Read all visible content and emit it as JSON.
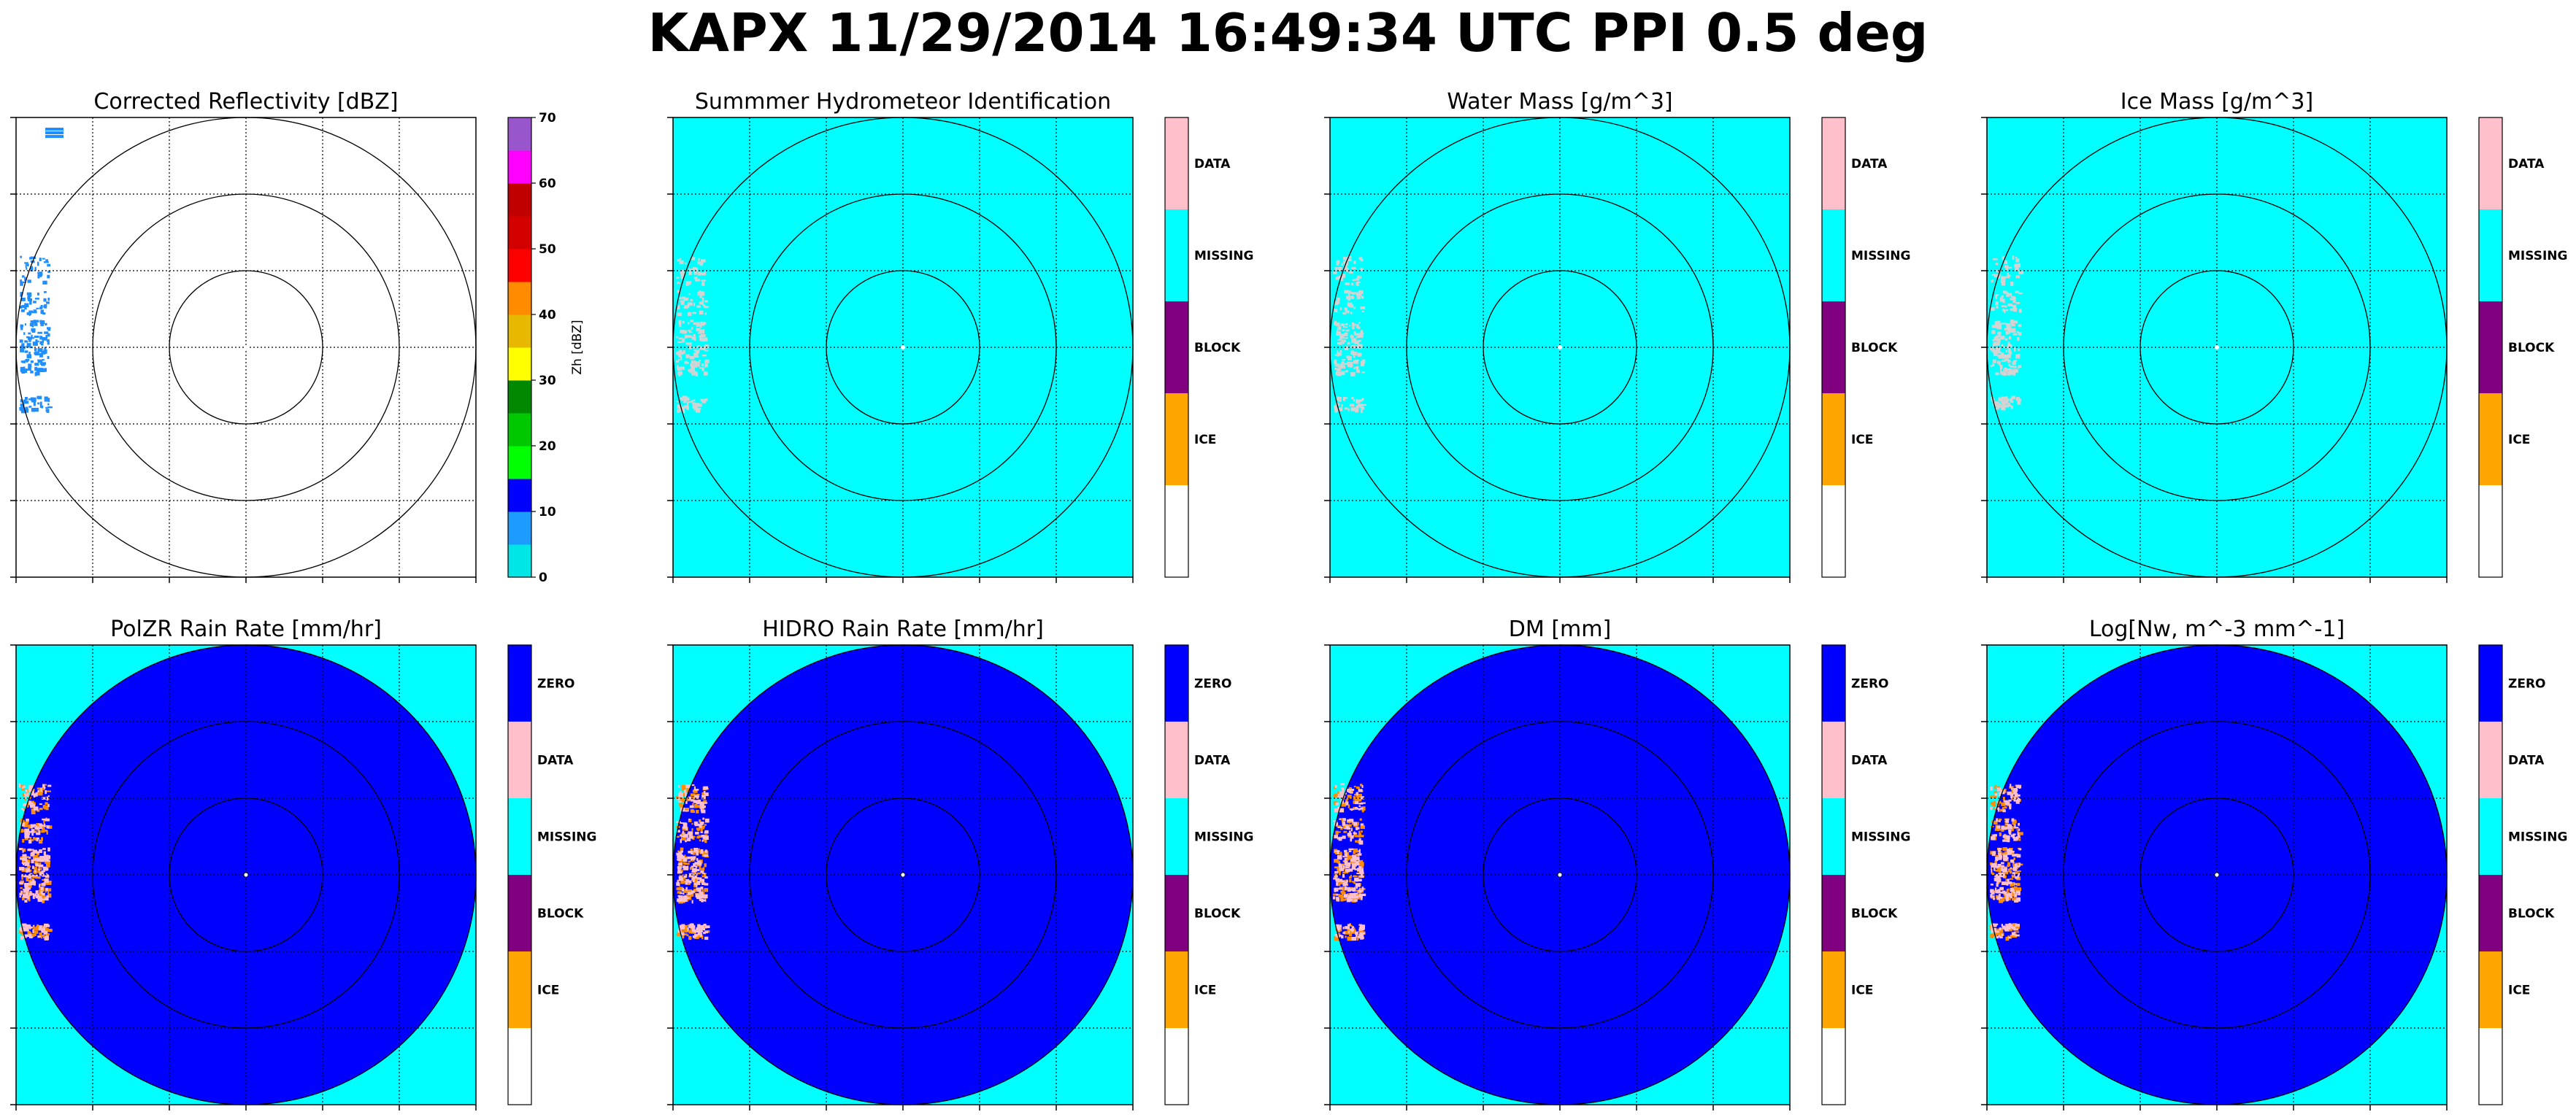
{
  "title": "KAPX 11/29/2014 16:49:34 UTC PPI 0.5 deg",
  "colors": {
    "cyan": "#00ffff",
    "blue": "#0000ff",
    "pink": "#ffc0cb",
    "purple": "#800080",
    "orange": "#ffa500",
    "white": "#ffffff",
    "light_gray": "#d3d3d3",
    "precip_blue": "#1f8fff"
  },
  "chart_data": [
    {
      "type": "heatmap",
      "title": "Corrected Reflectivity [dBZ]",
      "background": "white",
      "colorbar": {
        "type": "continuous",
        "label": "Zh [dBZ]",
        "ticks": [
          0,
          10,
          20,
          30,
          40,
          50,
          60,
          70
        ],
        "range": [
          0,
          70
        ],
        "levels": [
          "#00e5e5",
          "#1e9bff",
          "#0000ff",
          "#00ff00",
          "#00c800",
          "#008800",
          "#ffff00",
          "#e6b800",
          "#ff8c00",
          "#ff0000",
          "#d40000",
          "#c00000",
          "#ff00ff",
          "#9955cc"
        ]
      },
      "features": "light blue echoes along western edge (10-20 dBZ)"
    },
    {
      "type": "heatmap",
      "title": "Summmer Hydrometeor Identification",
      "background": "cyan",
      "colorbar": {
        "type": "categorical",
        "labels": [
          "",
          "ICE",
          "BLOCK",
          "MISSING",
          "DATA"
        ]
      },
      "features": "pink/gray data along western edge"
    },
    {
      "type": "heatmap",
      "title": "Water Mass [g/m^3]",
      "background": "cyan",
      "colorbar": {
        "type": "categorical",
        "labels": [
          "",
          "ICE",
          "BLOCK",
          "MISSING",
          "DATA"
        ]
      },
      "features": "pink/gray data along western edge"
    },
    {
      "type": "heatmap",
      "title": "Ice Mass [g/m^3]",
      "background": "cyan",
      "colorbar": {
        "type": "categorical",
        "labels": [
          "",
          "ICE",
          "BLOCK",
          "MISSING",
          "DATA"
        ]
      },
      "features": "pink/gray data along western edge"
    },
    {
      "type": "heatmap",
      "title": "PolZR Rain Rate [mm/hr]",
      "background": "cyan",
      "disk": "blue",
      "colorbar": {
        "type": "categorical",
        "labels": [
          "",
          "ICE",
          "BLOCK",
          "MISSING",
          "DATA",
          "ZERO"
        ]
      },
      "features": "orange/pink echoes along western edge inside blue disk"
    },
    {
      "type": "heatmap",
      "title": "HIDRO Rain Rate [mm/hr]",
      "background": "cyan",
      "disk": "blue",
      "colorbar": {
        "type": "categorical",
        "labels": [
          "",
          "ICE",
          "BLOCK",
          "MISSING",
          "DATA",
          "ZERO"
        ]
      },
      "features": "orange/pink echoes along western edge inside blue disk"
    },
    {
      "type": "heatmap",
      "title": "DM [mm]",
      "background": "cyan",
      "disk": "blue",
      "colorbar": {
        "type": "categorical",
        "labels": [
          "",
          "ICE",
          "BLOCK",
          "MISSING",
          "DATA",
          "ZERO"
        ]
      },
      "features": "orange/pink echoes along western edge inside blue disk"
    },
    {
      "type": "heatmap",
      "title": "Log[Nw, m^-3 mm^-1]",
      "background": "cyan",
      "disk": "blue",
      "colorbar": {
        "type": "categorical",
        "labels": [
          "",
          "ICE",
          "BLOCK",
          "MISSING",
          "DATA",
          "ZERO"
        ]
      },
      "features": "orange/pink echoes along western edge inside blue disk"
    }
  ]
}
